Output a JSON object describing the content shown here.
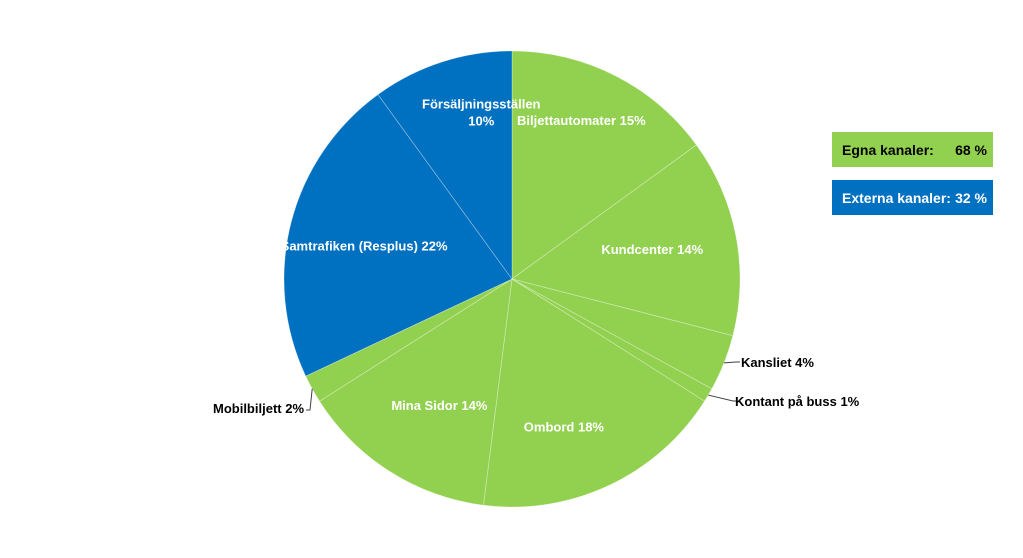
{
  "chart_data": {
    "type": "pie",
    "start_angle_deg": 0,
    "direction": "clockwise",
    "slices": [
      {
        "label": "Biljettautomater",
        "value": 15,
        "value_text": "15%",
        "color": "#92d050",
        "label_mode": "inside",
        "label_color": "#ffffff",
        "label_lines": [
          "Biljettautomater 15%"
        ]
      },
      {
        "label": "Kundcenter",
        "value": 14,
        "value_text": "14%",
        "color": "#92d050",
        "label_mode": "inside",
        "label_color": "#ffffff",
        "label_lines": [
          "Kundcenter 14%"
        ]
      },
      {
        "label": "Kansliet",
        "value": 4,
        "value_text": "4%",
        "color": "#92d050",
        "label_mode": "outside",
        "label_color": "#000000",
        "label_lines": [
          "Kansliet 4%"
        ]
      },
      {
        "label": "Kontant på buss",
        "value": 1,
        "value_text": "1%",
        "color": "#92d050",
        "label_mode": "outside",
        "label_color": "#000000",
        "label_lines": [
          "Kontant på buss 1%"
        ]
      },
      {
        "label": "Ombord",
        "value": 18,
        "value_text": "18%",
        "color": "#92d050",
        "label_mode": "inside",
        "label_color": "#ffffff",
        "label_lines": [
          "Ombord 18%"
        ]
      },
      {
        "label": "Mina Sidor",
        "value": 14,
        "value_text": "14%",
        "color": "#92d050",
        "label_mode": "inside",
        "label_color": "#ffffff",
        "label_lines": [
          "Mina Sidor 14%"
        ]
      },
      {
        "label": "Mobilbiljett",
        "value": 2,
        "value_text": "2%",
        "color": "#92d050",
        "label_mode": "outside",
        "label_color": "#000000",
        "label_lines": [
          "Mobilbiljett 2%"
        ]
      },
      {
        "label": "Samtrafiken (Resplus)",
        "value": 22,
        "value_text": "22%",
        "color": "#0070c0",
        "label_mode": "inside",
        "label_color": "#ffffff",
        "label_lines": [
          "Samtrafiken (Resplus) 22%"
        ]
      },
      {
        "label": "Försäljningsställen",
        "value": 10,
        "value_text": "10%",
        "color": "#0070c0",
        "label_mode": "inside",
        "label_color": "#ffffff",
        "label_lines": [
          "Försäljningsställen",
          "10%"
        ]
      }
    ]
  },
  "summary": {
    "egna": {
      "label": "Egna kanaler:",
      "value": "68 %",
      "color": "#92d050"
    },
    "externa": {
      "label": "Externa kanaler:",
      "value": "32 %",
      "color": "#0070c0"
    }
  }
}
